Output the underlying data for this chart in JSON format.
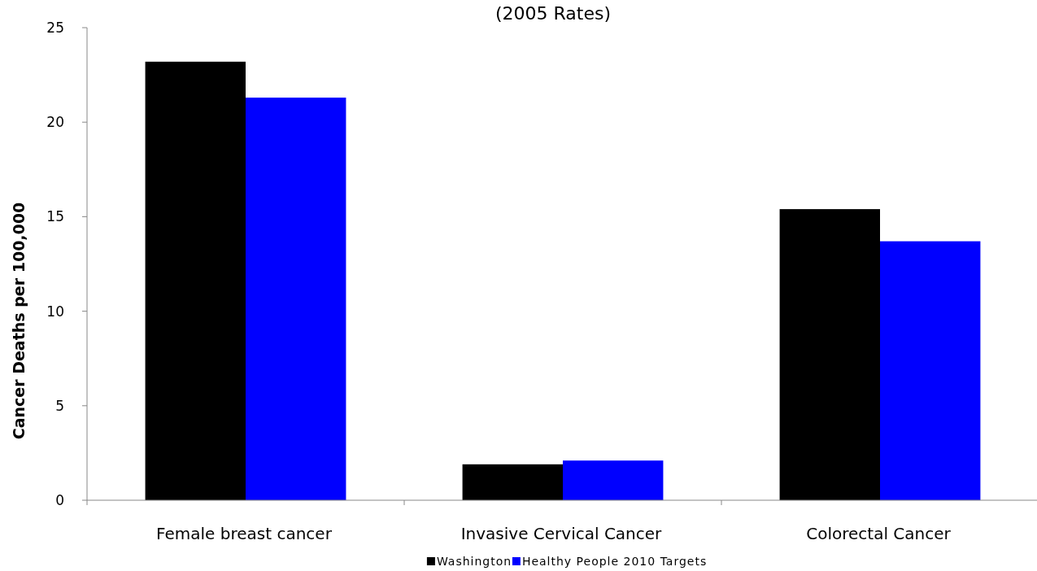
{
  "chart_data": {
    "type": "bar",
    "title": "(2005 Rates)",
    "ylabel": "Cancer Deaths per 100,000",
    "categories": [
      "Female breast cancer",
      "Invasive Cervical Cancer",
      "Colorectal Cancer"
    ],
    "series": [
      {
        "name": "Washington",
        "color": "#000000",
        "values": [
          23.2,
          1.9,
          15.4
        ]
      },
      {
        "name": "Healthy People 2010 Targets",
        "color": "#0000ff",
        "values": [
          21.3,
          2.1,
          13.7
        ]
      }
    ],
    "ylim": [
      0,
      25
    ],
    "yticks": [
      0,
      5,
      10,
      15,
      20,
      25
    ],
    "grid": false,
    "legend": "bottom"
  }
}
